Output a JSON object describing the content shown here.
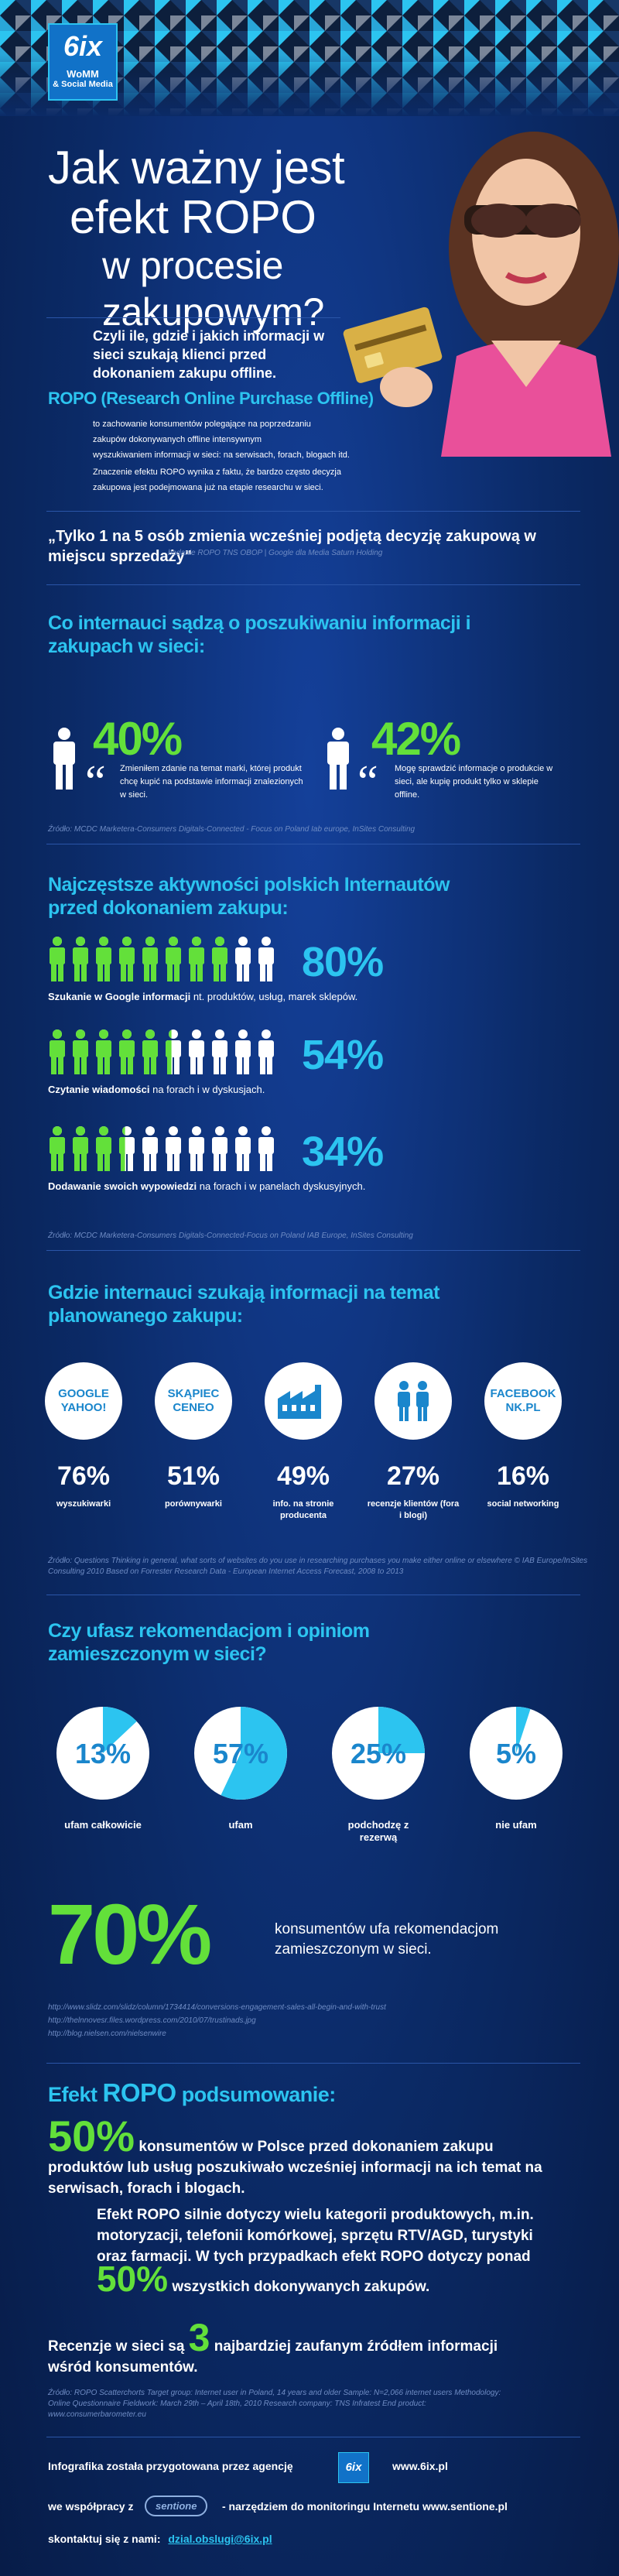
{
  "colors": {
    "accent": "#2cc4f0",
    "green": "#63e03a",
    "bg": "#0b2a66"
  },
  "logo": {
    "name": "6ix",
    "line1": "WoMM",
    "line2": "& Social Media"
  },
  "title": {
    "line1": "Jak ważny jest",
    "line2": "efekt ROPO",
    "line3": "w procesie zakupowym?"
  },
  "intro": {
    "lead": "Czyli ile, gdzie i jakich informacji w sieci szukają klienci przed dokonaniem zakupu offline.",
    "ropo_title": "ROPO (Research Online Purchase Offline)",
    "p1_l1": "to zachowanie konsumentów polegające na poprzedzaniu",
    "p1_l2": "zakupów dokonywanych offline intensywnym",
    "p1_l3": "wyszukiwaniem informacji w sieci: na serwisach, forach, blogach itd.",
    "p2_l1": "Znaczenie efektu ROPO wynika z faktu, że bardzo często decyzja",
    "p2_l2": "zakupowa jest podejmowana już na etapie researchu w sieci."
  },
  "quote1": {
    "text": "„Tylko 1 na 5 osób zmienia wcześniej podjętą decyzję zakupową w miejscu sprzedaży\"",
    "source": "badanie ROPO TNS OBOP | Google dla Media Saturn Holding"
  },
  "section1": {
    "title": "Co internauci sądzą o poszukiwaniu informacji i zakupach w sieci:",
    "left_pct": "40%",
    "left_text": "Zmieniłem zdanie na temat marki, której produkt chcę kupić na podstawie informacji znalezionych w sieci.",
    "right_pct": "42%",
    "right_text": "Mogę sprawdzić informacje o produkcie w sieci, ale kupię produkt tylko w sklepie offline.",
    "source": "Źródło: MCDC Marketera-Consumers Digitals-Connected - Focus on Poland Iab europe, InSites Consulting"
  },
  "chart_data": [
    {
      "type": "bar",
      "title": "Najczęstsze aktywności polskich Internautów przed dokonaniem zakupu:",
      "categories": [
        "Szukanie w Google informacji nt. produktów, usług, marek sklepów.",
        "Czytanie wiadomości na forach i w dyskusjach.",
        "Dodawanie swoich wypowiedzi na forach i w panelach dyskusyjnych."
      ],
      "values": [
        80,
        54,
        34
      ],
      "labels": [
        "80%",
        "54%",
        "34%"
      ],
      "bold": [
        "Szukanie w Google informacji",
        "Czytanie wiadomości",
        "Dodawanie swoich wypowiedzi"
      ],
      "rest": [
        " nt. produktów, usług, marek sklepów.",
        " na forach i w dyskusjach.",
        " na forach i w panelach dyskusyjnych."
      ],
      "ylim": [
        0,
        100
      ],
      "source": "Źródło: MCDC Marketera-Consumers Digitals-Connected-Focus on Poland IAB Europe, InSites Consulting"
    },
    {
      "type": "bar",
      "title": "Gdzie internauci szukają informacji na temat planowanego zakupu:",
      "categories": [
        "wyszukiwarki",
        "porównywarki",
        "info. na stronie producenta",
        "recenzje klientów (fora i blogi)",
        "social networking"
      ],
      "icons": [
        "GOOGLE YAHOO!",
        "SKĄPIEC CENEO",
        "factory-icon",
        "people-icon",
        "FACEBOOK NK.PL"
      ],
      "values": [
        76,
        51,
        49,
        27,
        16
      ],
      "labels": [
        "76%",
        "51%",
        "49%",
        "27%",
        "16%"
      ],
      "source": "Źródło: Questions Thinking in general, what sorts of websites do you use in researching purchases you make either online or elsewhere © IAB Europe/InSites Consulting 2010 Based on Forrester Research Data - European Internet Access Forecast, 2008 to 2013"
    },
    {
      "type": "pie",
      "title": "Czy ufasz rekomendacjom i opiniom zamieszczonym w sieci?",
      "categories": [
        "ufam całkowicie",
        "ufam",
        "podchodzę z rezerwą",
        "nie ufam"
      ],
      "values": [
        13,
        57,
        25,
        5
      ],
      "labels": [
        "13%",
        "57%",
        "25%",
        "5%"
      ]
    }
  ],
  "trust": {
    "big_pct": "70%",
    "text": "konsumentów ufa rekomendacjom zamieszczonym w sieci.",
    "links": [
      "http://www.slidz.com/slidz/column/1734414/conversions-engagement-sales-all-begin-and-with-trust",
      "http://thelnnovesr.files.wordpress.com/2010/07/trustinads.jpg",
      "http://blog.nielsen.com/nielsenwire"
    ]
  },
  "summary": {
    "title_prefix": "Efekt ",
    "title_ropo": "ROPO",
    "title_suffix": " podsumowanie:",
    "pct1": "50%",
    "text1": "konsumentów w Polsce przed dokonaniem zakupu produktów lub usług poszukiwało wcześniej informacji na ich temat na serwisach, forach i blogach.",
    "text2": "Efekt ROPO silnie dotyczy wielu kategorii produktowych, m.in. motoryzacji, telefonii komórkowej, sprzętu RTV/AGD, turystyki oraz farmacji. W tych przypadkach efekt ROPO dotyczy ponad",
    "pct2": "50%",
    "text2b": "wszystkich dokonywanych zakupów.",
    "text3a": "Recenzje w sieci są",
    "num3": "3",
    "text3b": "najbardziej zaufanym źródłem informacji wśród konsumentów.",
    "source": "Źródło: ROPO Scatterchorts Target group: Internet user in Poland, 14 years and older Sample: N=2,066 internet users Methodology: Online Questionnaire Fieldwork: March 29th – April 18th, 2010 Research company: TNS Infratest End product: www.consumerbarometer.eu"
  },
  "footer": {
    "prepared": "Infografika została przygotowana przez agencję",
    "site1": "www.6ix.pl",
    "coop": "we współpracy z",
    "sentione": "sentione",
    "tool": "- narzędziem do monitoringu Internetu www.sentione.pl",
    "contact_label": "skontaktuj się z nami:",
    "email": "dzial.obslugi@6ix.pl"
  }
}
